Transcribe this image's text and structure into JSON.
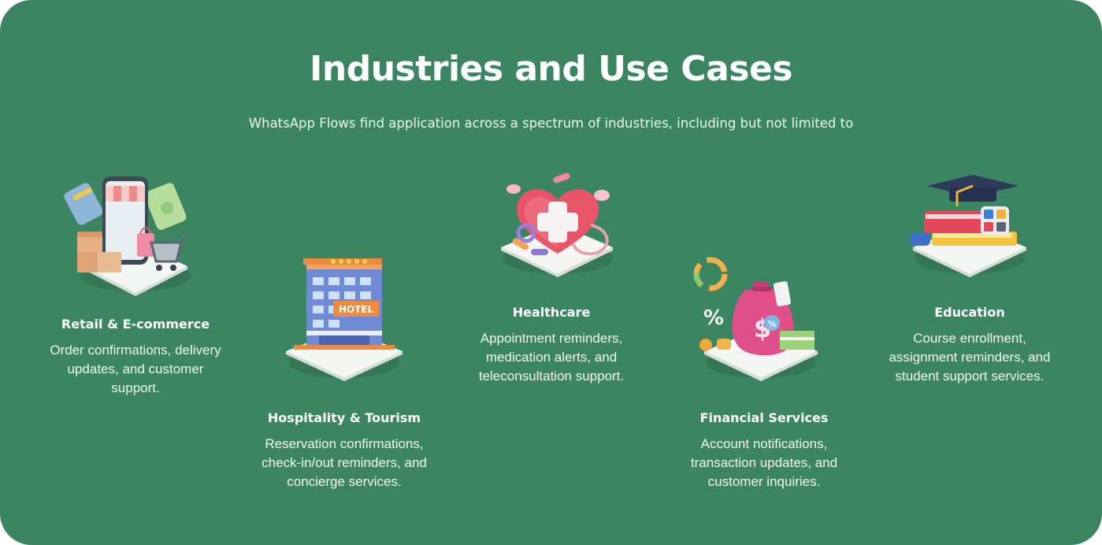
{
  "header": {
    "title": "Industries and Use Cases",
    "subtitle": "WhatsApp Flows find application across a spectrum of industries, including but not limited to"
  },
  "colors": {
    "background": "#3b8563",
    "text": "#ffffff"
  },
  "industries": [
    {
      "name": "Retail & E-commerce",
      "description": "Order confirmations, delivery updates, and customer support.",
      "icon": "shopping-phone-icon"
    },
    {
      "name": "Hospitality & Tourism",
      "description": "Reservation confirmations, check-in/out reminders, and concierge services.",
      "icon": "hotel-building-icon",
      "sign": "HOTEL"
    },
    {
      "name": "Healthcare",
      "description": "Appointment reminders, medication alerts, and teleconsultation support.",
      "icon": "medical-heart-icon"
    },
    {
      "name": "Financial Services",
      "description": "Account notifications, transaction updates, and customer inquiries.",
      "icon": "money-bag-icon"
    },
    {
      "name": "Education",
      "description": "Course enrollment, assignment reminders, and student support services.",
      "icon": "graduation-books-icon"
    }
  ]
}
